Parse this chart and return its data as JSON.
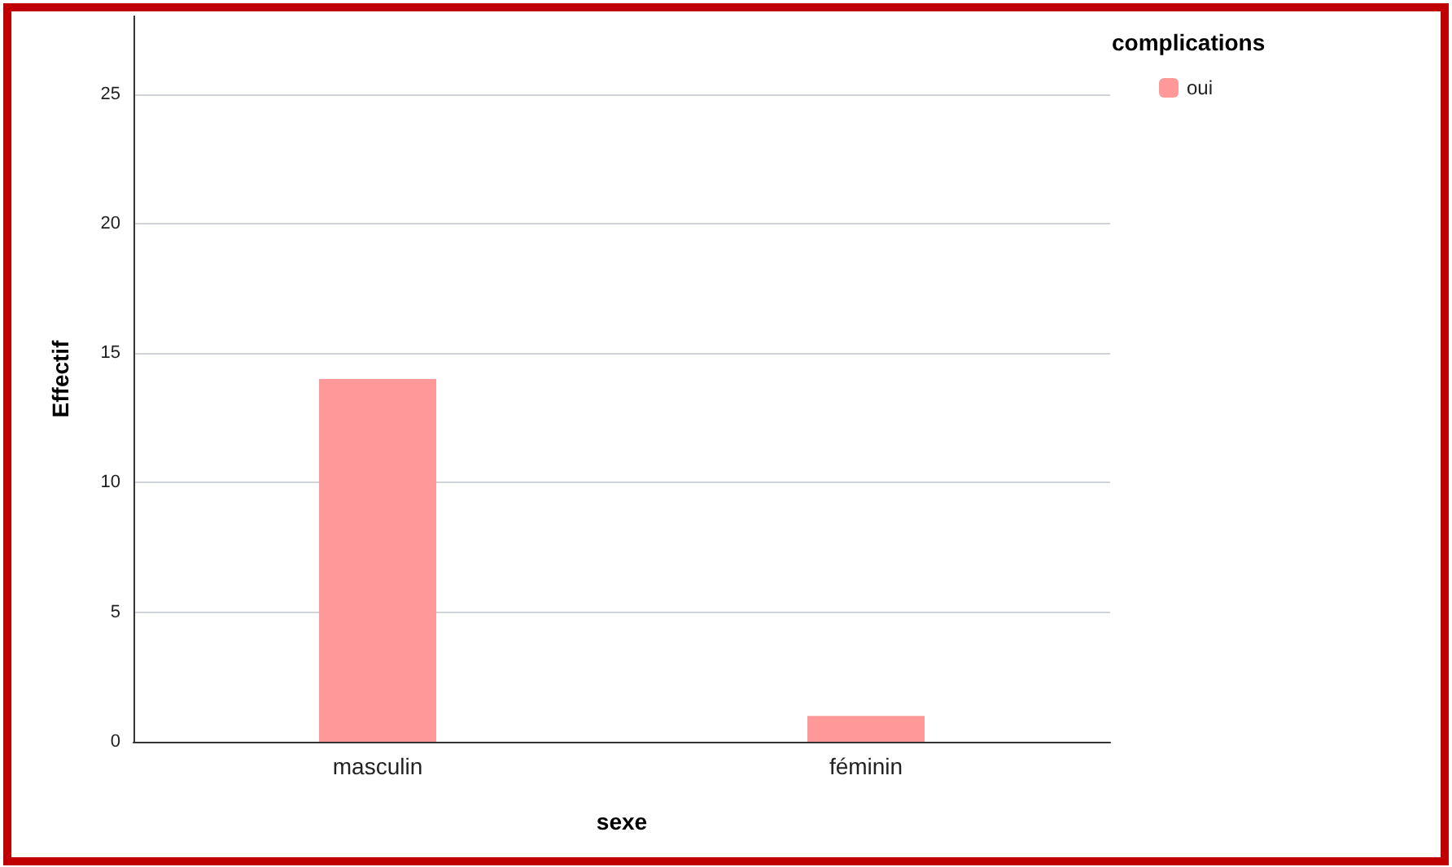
{
  "chart_data": {
    "type": "bar",
    "xlabel": "sexe",
    "ylabel": "Effectif",
    "legend_title": "complications",
    "categories": [
      "masculin",
      "féminin"
    ],
    "series": [
      {
        "name": "oui",
        "color": "#ff9999",
        "values": [
          14,
          1
        ]
      }
    ],
    "ylim": [
      0,
      28
    ],
    "yticks": [
      0,
      5,
      10,
      15,
      20,
      25
    ],
    "grid": "y",
    "legend": "top right"
  }
}
